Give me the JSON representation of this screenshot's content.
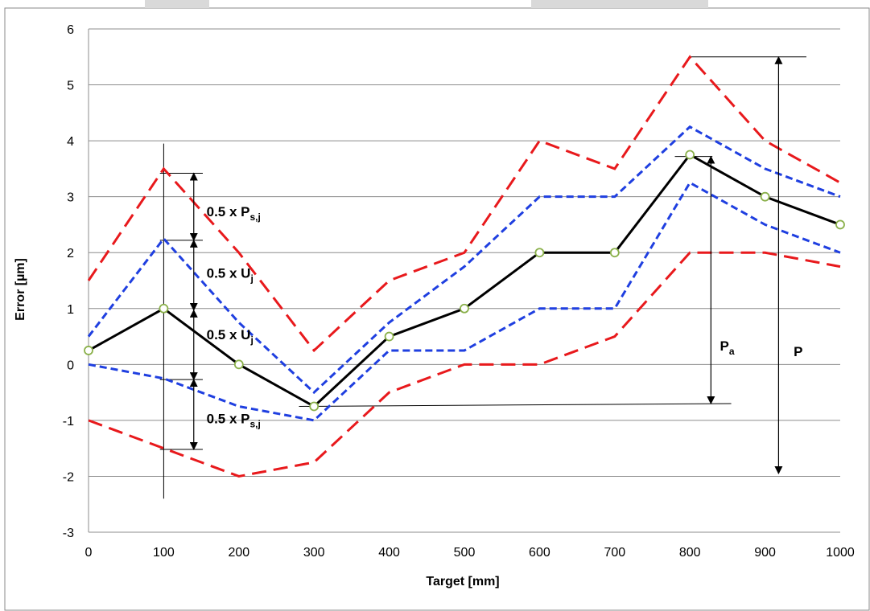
{
  "chart_data": {
    "type": "line",
    "title": "",
    "xlabel": "Target [mm]",
    "ylabel": "Error [µm]",
    "x": [
      0,
      100,
      200,
      300,
      400,
      500,
      600,
      700,
      800,
      900,
      1000
    ],
    "xlim": [
      0,
      1000
    ],
    "ylim": [
      -3,
      6
    ],
    "x_ticks": [
      "0",
      "100",
      "200",
      "300",
      "400",
      "500",
      "600",
      "700",
      "800",
      "900",
      "1000"
    ],
    "y_ticks": [
      "-3",
      "-2",
      "-1",
      "0",
      "1",
      "2",
      "3",
      "4",
      "5",
      "6"
    ],
    "grid": "horizontal",
    "legend": "none",
    "series": [
      {
        "values": [
          1.5,
          3.5,
          2.0,
          0.25,
          1.5,
          2.0,
          4.0,
          3.5,
          5.5,
          4.0,
          3.25
        ],
        "color": "#e8191c",
        "style": "long-dash"
      },
      {
        "values": [
          0.5,
          2.25,
          0.75,
          -0.5,
          0.75,
          1.75,
          3.0,
          3.0,
          4.25,
          3.5,
          3.0
        ],
        "color": "#1f3fe0",
        "style": "short-dash"
      },
      {
        "values": [
          0.25,
          1.0,
          0.0,
          -0.75,
          0.5,
          1.0,
          2.0,
          2.0,
          3.75,
          3.0,
          2.5
        ],
        "color": "#000000",
        "style": "solid",
        "marker": "open-circle",
        "marker_color": "#8ab04a"
      },
      {
        "values": [
          0.0,
          -0.25,
          -0.75,
          -1.0,
          0.25,
          0.25,
          1.0,
          1.0,
          3.25,
          2.5,
          2.0
        ],
        "color": "#1f3fe0",
        "style": "short-dash"
      },
      {
        "values": [
          -1.0,
          -1.5,
          -2.0,
          -1.75,
          -0.5,
          0.0,
          0.0,
          0.5,
          2.0,
          2.0,
          1.75
        ],
        "color": "#e8191c",
        "style": "long-dash"
      }
    ],
    "annotations": [
      {
        "main": "0.5 x P",
        "sub": "s,j",
        "x": 157,
        "y": 2.65
      },
      {
        "main": "0.5 x U",
        "sub": "j",
        "x": 157,
        "y": 1.55
      },
      {
        "main": "0.5 x U",
        "sub": "j",
        "x": 157,
        "y": 0.45
      },
      {
        "main": "0.5 x P",
        "sub": "s,j",
        "x": 157,
        "y": -1.05
      },
      {
        "main": "P",
        "sub": "a",
        "x": 840,
        "y": 0.25
      },
      {
        "main": "P",
        "sub": "",
        "x": 938,
        "y": 0.15
      }
    ],
    "reference_lines": {
      "vertical_at_100": {
        "x": 100,
        "from": -2.4,
        "to": 3.95
      },
      "pa_low": {
        "x1": 280,
        "y1": -0.75,
        "x2": 855,
        "y2": -0.7
      },
      "pa_high": {
        "x1": 780,
        "y1": 3.72,
        "x2": 830,
        "y2": 3.72
      },
      "p_high": {
        "x1": 800,
        "y1": 5.5,
        "x2": 955,
        "y2": 5.5
      }
    },
    "arrows": [
      {
        "x": 140,
        "from": 3.42,
        "to": 2.22
      },
      {
        "x": 140,
        "from": 2.22,
        "to": 0.97
      },
      {
        "x": 140,
        "from": 0.97,
        "to": -0.27
      },
      {
        "x": 140,
        "from": -0.27,
        "to": -1.52
      },
      {
        "x": 828,
        "from": 3.72,
        "to": -0.7
      },
      {
        "x": 918,
        "from": 5.5,
        "to": -1.95
      }
    ]
  }
}
